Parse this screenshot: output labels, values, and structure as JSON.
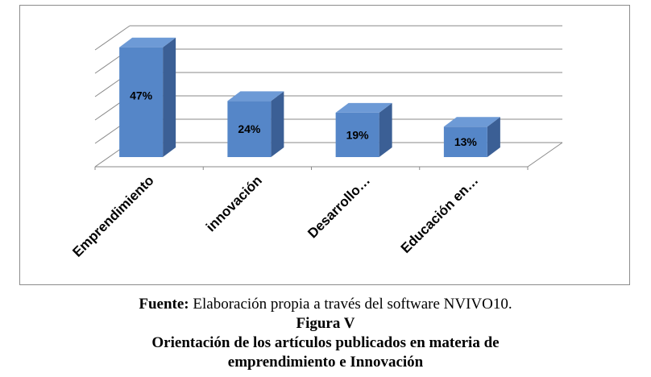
{
  "chart_data": {
    "type": "bar",
    "style": "3d-column",
    "categories": [
      "Emprendimiento",
      "innovación",
      "Desarrollo…",
      "Educación en…"
    ],
    "values": [
      47,
      24,
      19,
      13
    ],
    "data_labels": [
      "47%",
      "24%",
      "19%",
      "13%"
    ],
    "unit": "%",
    "ylim": [
      0,
      50
    ],
    "grid": true,
    "legend": "none",
    "bar_color": "#5586c8",
    "bar_side_color": "#3b5f95",
    "bar_top_color": "#6d9ad6"
  },
  "caption": {
    "source_label": "Fuente:",
    "source_text": " Elaboración propia a través del software NVIVO10.",
    "figure_label": "Figura V",
    "title_line1": "Orientación de los artículos publicados en materia de",
    "title_line2": "emprendimiento e Innovación"
  }
}
